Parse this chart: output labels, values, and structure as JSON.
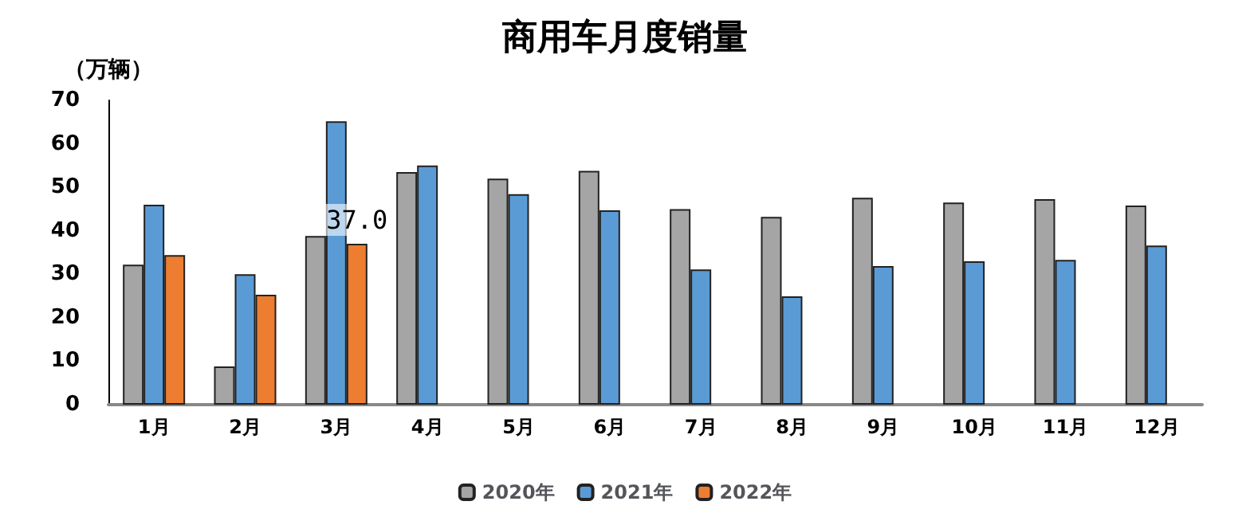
{
  "chart_data": {
    "type": "bar",
    "title": "商用车月度销量",
    "ylabel": "（万辆）",
    "categories": [
      "1月",
      "2月",
      "3月",
      "4月",
      "5月",
      "6月",
      "7月",
      "8月",
      "9月",
      "10月",
      "11月",
      "12月"
    ],
    "series": [
      {
        "name": "2020年",
        "color": "#a5a5a5",
        "values": [
          32.2,
          8.8,
          38.8,
          53.5,
          52,
          53.8,
          45,
          43.2,
          47.6,
          46.5,
          47.3,
          45.8
        ]
      },
      {
        "name": "2021年",
        "color": "#5b9bd5",
        "values": [
          46,
          30,
          65.2,
          55,
          48.4,
          44.7,
          31.1,
          24.9,
          31.9,
          33,
          33.3,
          36.6
        ]
      },
      {
        "name": "2022年",
        "color": "#ed7d31",
        "values": [
          34.4,
          25.3,
          37.0,
          null,
          null,
          null,
          null,
          null,
          null,
          null,
          null,
          null
        ],
        "value_labels": [
          null,
          null,
          "37.0",
          null,
          null,
          null,
          null,
          null,
          null,
          null,
          null,
          null
        ]
      }
    ],
    "ylim": [
      0,
      70
    ],
    "yticks": [
      0,
      10,
      20,
      30,
      40,
      50,
      60,
      70
    ],
    "grid": false,
    "legend": "bottom"
  }
}
